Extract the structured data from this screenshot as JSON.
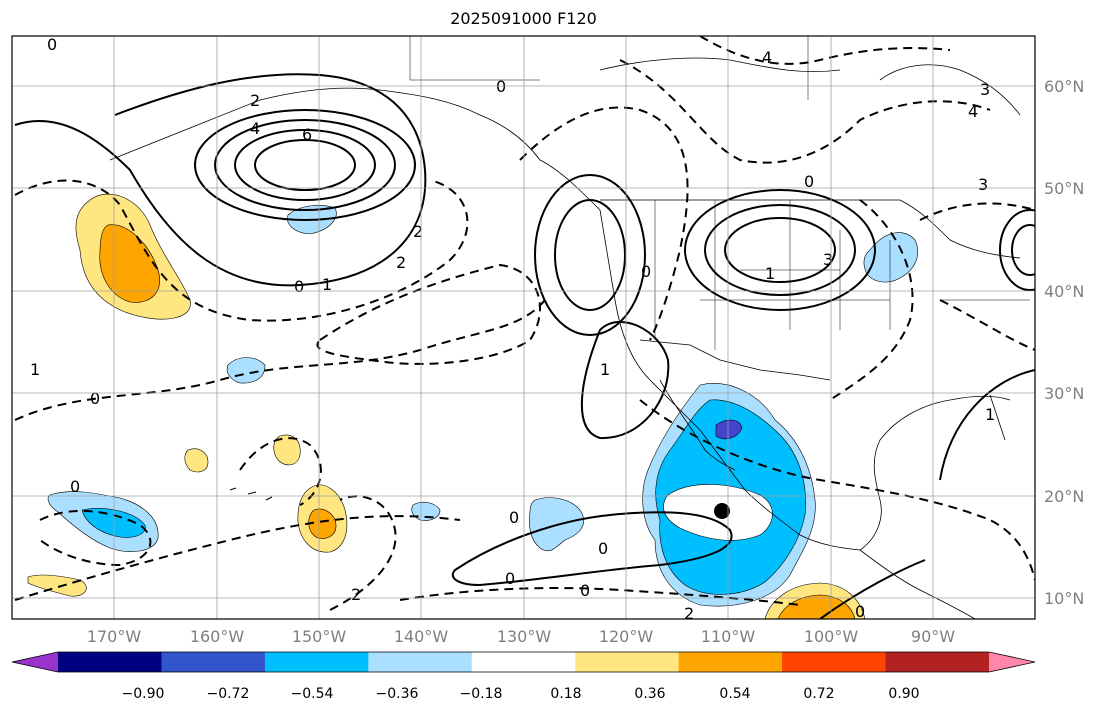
{
  "title": "2025091000 F120",
  "lon_labels": [
    "170°W",
    "160°W",
    "150°W",
    "140°W",
    "130°W",
    "120°W",
    "110°W",
    "100°W",
    "90°W"
  ],
  "lat_labels": [
    "60°N",
    "50°N",
    "40°N",
    "30°N",
    "20°N",
    "10°N"
  ],
  "colorbar": {
    "colors": [
      "#9933cc",
      "#000080",
      "#3355cc",
      "#00bfff",
      "#aadfff",
      "#ffffff",
      "#ffe680",
      "#ffa500",
      "#ff4500",
      "#b22222",
      "#ff88aa"
    ],
    "labels": [
      "−0.90",
      "−0.72",
      "−0.54",
      "−0.36",
      "−0.18",
      "0.18",
      "0.36",
      "0.54",
      "0.72",
      "0.90"
    ]
  },
  "contour_labels": [
    "0",
    "0",
    "0",
    "0",
    "0",
    "0",
    "0",
    "0",
    "0",
    "2",
    "2",
    "2",
    "3",
    "3",
    "3",
    "4",
    "4",
    "4",
    "6",
    "1",
    "1",
    "1",
    "1",
    "1",
    "2",
    "2",
    "0",
    "0",
    "0"
  ],
  "colors": {
    "light_blue": "#aadfff",
    "blue": "#00bfff",
    "purple": "#4444cc",
    "yellow": "#ffe680",
    "orange": "#ffa500",
    "contour": "#000000",
    "grid": "#a0a0a0",
    "coast": "#000000"
  }
}
